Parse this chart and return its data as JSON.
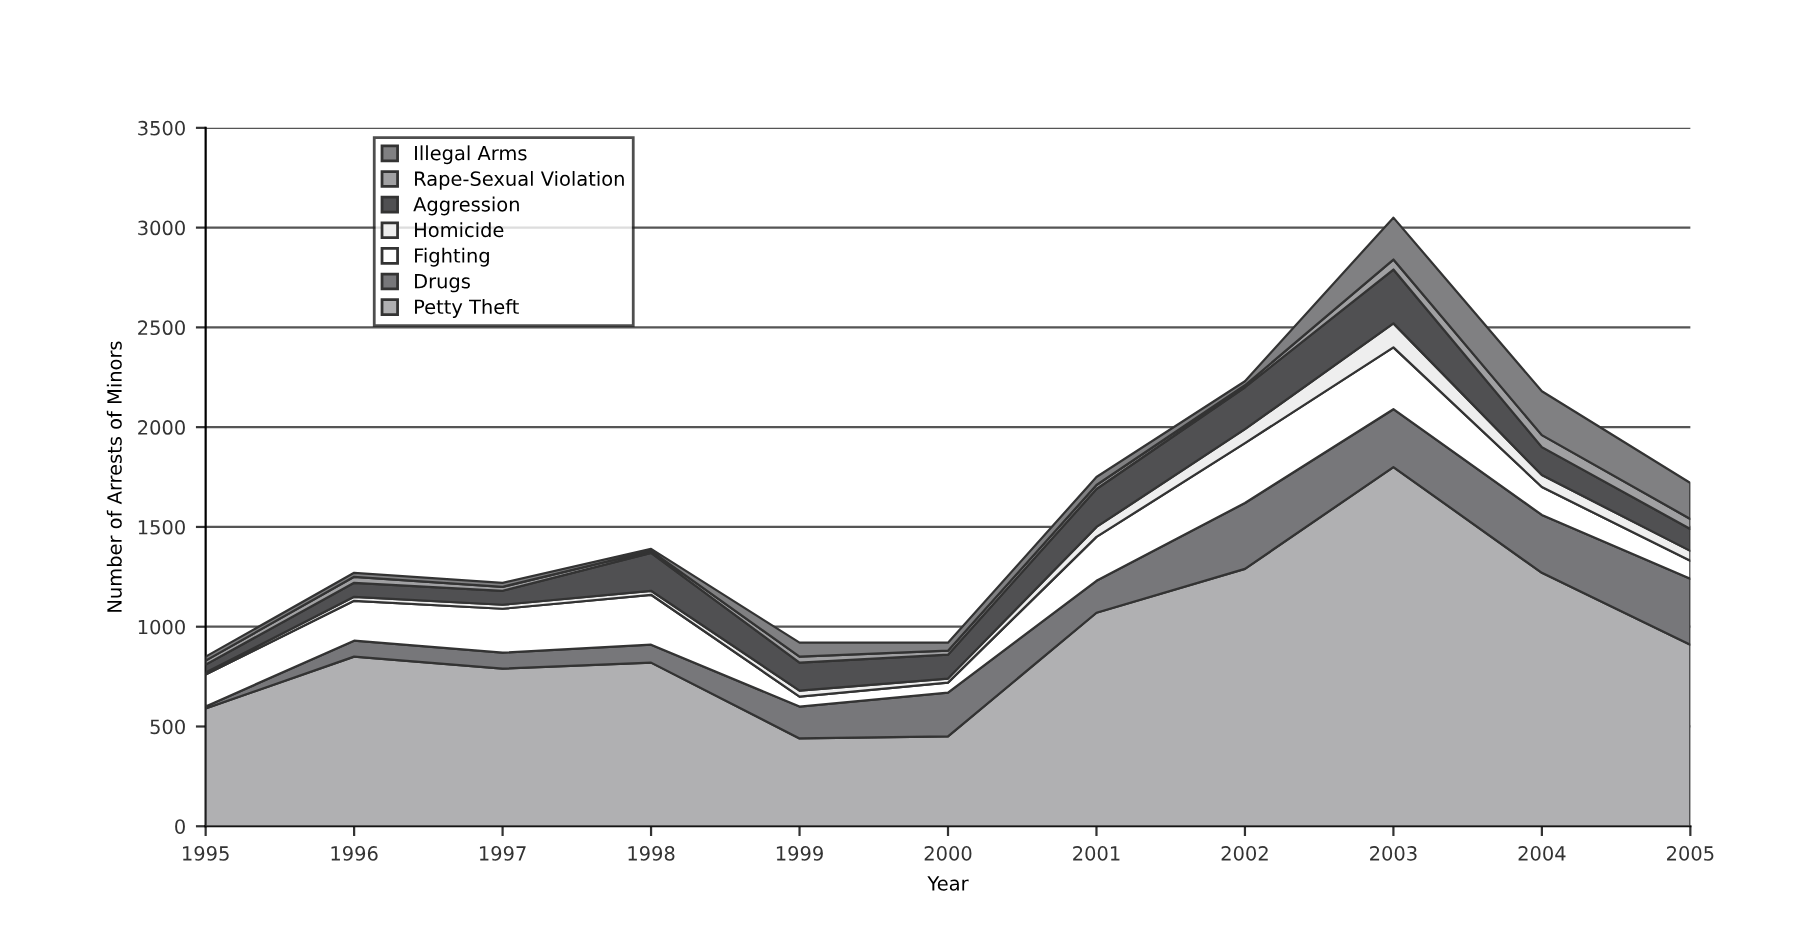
{
  "chart_data": {
    "type": "area",
    "stacked": true,
    "xlabel": "Year",
    "ylabel": "Number of Arrests of Minors",
    "x": [
      1995,
      1996,
      1997,
      1998,
      1999,
      2000,
      2001,
      2002,
      2003,
      2004,
      2005
    ],
    "xlim": [
      1995,
      2005
    ],
    "xticks": [
      1995,
      1996,
      1997,
      1998,
      1999,
      2000,
      2001,
      2002,
      2003,
      2004,
      2005
    ],
    "ylim": [
      0,
      3500
    ],
    "yticks": [
      0,
      500,
      1000,
      1500,
      2000,
      2500,
      3000,
      3500
    ],
    "grid": "y",
    "legend": "top left",
    "series": [
      {
        "name": "Petty Theft",
        "color": "#b0b0b2",
        "values": [
          590,
          850,
          790,
          820,
          440,
          450,
          1070,
          1290,
          1800,
          1270,
          910
        ]
      },
      {
        "name": "Drugs",
        "color": "#77777a",
        "values": [
          10,
          80,
          80,
          90,
          160,
          220,
          160,
          330,
          290,
          290,
          330
        ]
      },
      {
        "name": "Fighting",
        "color": "#ffffff",
        "values": [
          160,
          200,
          220,
          250,
          50,
          50,
          220,
          300,
          310,
          140,
          90
        ]
      },
      {
        "name": "Homicide",
        "color": "#eeeeee",
        "values": [
          10,
          20,
          20,
          20,
          30,
          20,
          50,
          70,
          120,
          60,
          50
        ]
      },
      {
        "name": "Aggression",
        "color": "#505052",
        "values": [
          40,
          70,
          70,
          190,
          140,
          120,
          190,
          210,
          270,
          140,
          110
        ]
      },
      {
        "name": "Rape-Sexual Violation",
        "color": "#a0a0a2",
        "values": [
          20,
          30,
          20,
          10,
          30,
          20,
          20,
          10,
          50,
          60,
          50
        ]
      },
      {
        "name": "Illegal Arms",
        "color": "#808082",
        "values": [
          20,
          20,
          20,
          10,
          70,
          40,
          40,
          20,
          210,
          220,
          180
        ]
      }
    ]
  }
}
